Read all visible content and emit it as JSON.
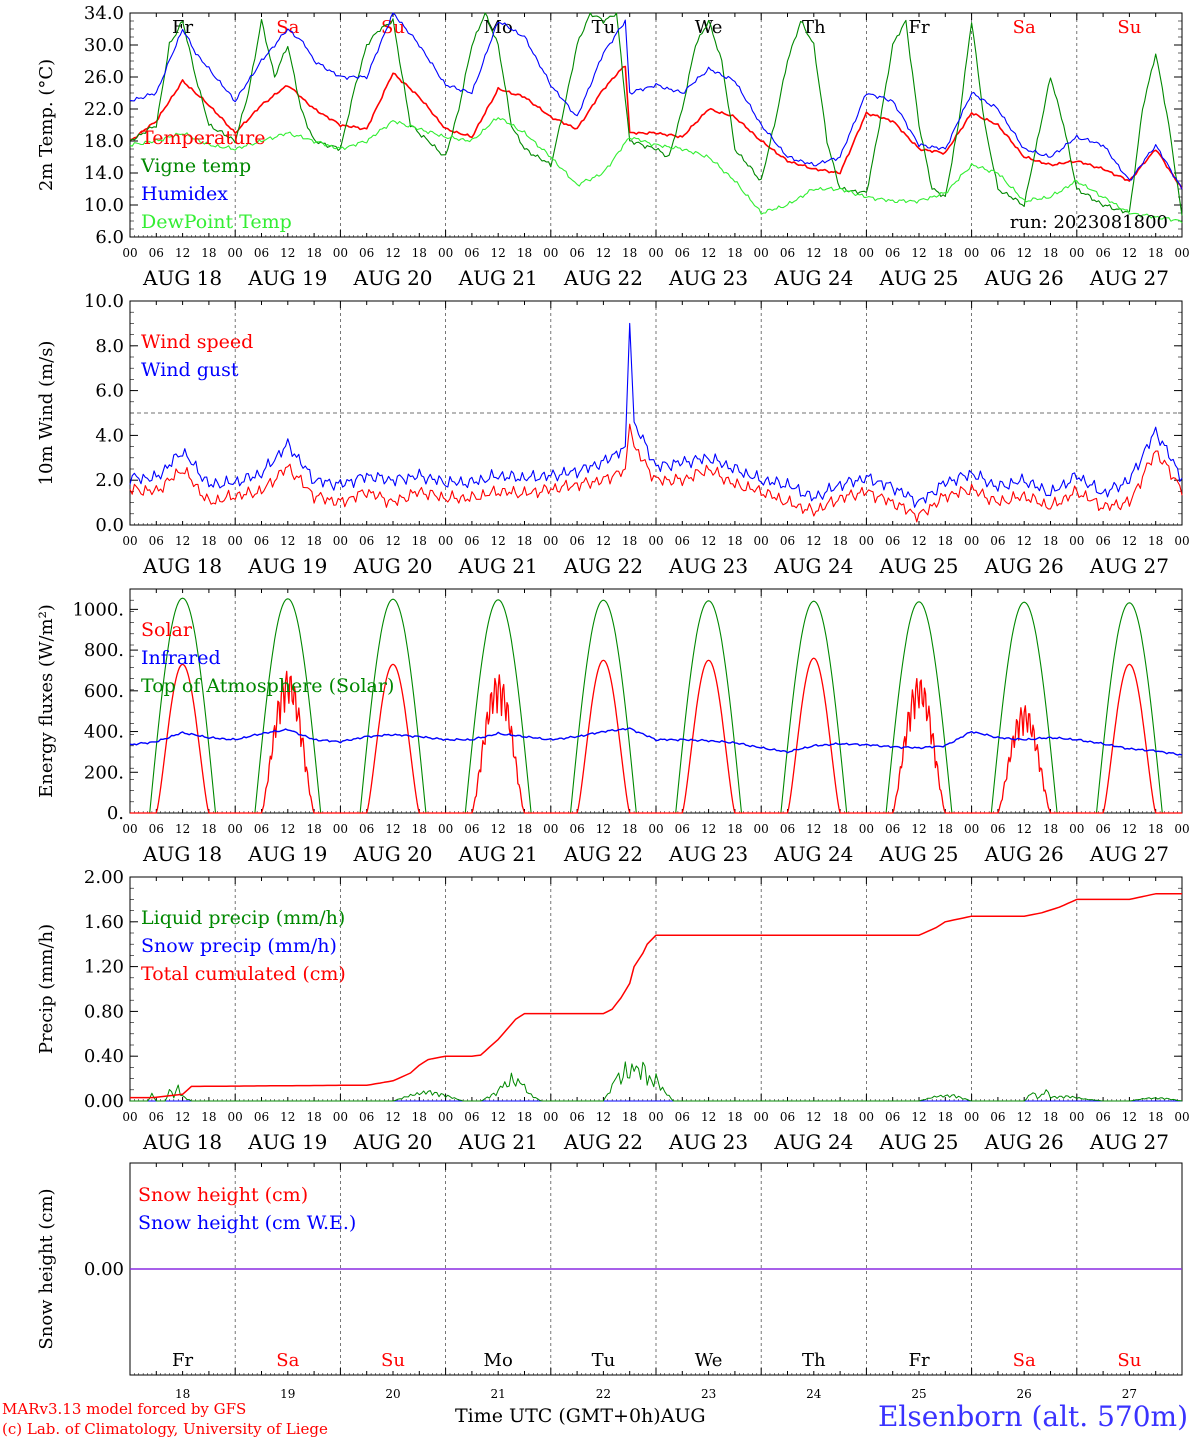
{
  "meta": {
    "run_label": "run: 2023081800",
    "credit_line1": "MARv3.13 model forced by GFS",
    "credit_line2": "(c) Lab. of Climatology, University of Liege",
    "time_axis_title": "Time UTC (GMT+0h)",
    "month": "AUG",
    "station": "Elsenborn (alt. 570m)"
  },
  "days": [
    {
      "date": "18",
      "dow": "Fr",
      "weekend": false
    },
    {
      "date": "19",
      "dow": "Sa",
      "weekend": true
    },
    {
      "date": "20",
      "dow": "Su",
      "weekend": true
    },
    {
      "date": "21",
      "dow": "Mo",
      "weekend": false
    },
    {
      "date": "22",
      "dow": "Tu",
      "weekend": false
    },
    {
      "date": "23",
      "dow": "We",
      "weekend": false
    },
    {
      "date": "24",
      "dow": "Th",
      "weekend": false
    },
    {
      "date": "25",
      "dow": "Fr",
      "weekend": false
    },
    {
      "date": "26",
      "dow": "Sa",
      "weekend": true
    },
    {
      "date": "27",
      "dow": "Su",
      "weekend": true
    }
  ],
  "hour_ticks": [
    "00",
    "06",
    "12",
    "18"
  ],
  "colors": {
    "red": "#ff0000",
    "blue": "#0000ff",
    "darkgreen": "#008800",
    "lightgreen": "#33ee33",
    "purple": "#8a2be2",
    "axis": "#000000"
  },
  "chart_data": [
    {
      "id": "temperature",
      "type": "line",
      "ylabel": "2m Temp. (°C)",
      "ylim": [
        6,
        34
      ],
      "yticks": [
        "6.0",
        "10.0",
        "14.0",
        "18.0",
        "22.0",
        "26.0",
        "30.0",
        "34.0"
      ],
      "x_unit": "hours since AUG 18 00 UTC",
      "series": [
        {
          "name": "Temperature",
          "color": "red",
          "x": [
            0,
            6,
            12,
            15,
            18,
            24,
            30,
            36,
            40,
            42,
            48,
            54,
            60,
            66,
            72,
            78,
            84,
            90,
            96,
            102,
            108,
            113,
            114,
            120,
            126,
            132,
            138,
            144,
            150,
            156,
            162,
            168,
            174,
            180,
            186,
            192,
            198,
            204,
            210,
            216,
            222,
            228,
            234,
            240
          ],
          "values": [
            18.0,
            20.5,
            25.5,
            24.0,
            22.5,
            19.0,
            22.5,
            25.0,
            23.0,
            22.0,
            20.0,
            19.5,
            26.5,
            23.5,
            19.5,
            18.5,
            24.5,
            23.5,
            21.0,
            19.5,
            24.5,
            27.5,
            19.0,
            19.0,
            18.5,
            22.0,
            21.0,
            18.0,
            15.5,
            14.5,
            14.0,
            21.5,
            20.5,
            17.0,
            16.5,
            21.5,
            20.0,
            16.0,
            15.0,
            15.5,
            14.5,
            13.0,
            17.0,
            12.0
          ]
        },
        {
          "name": "Vigne temp",
          "color": "darkgreen",
          "x": [
            0,
            6,
            9,
            12,
            15,
            18,
            24,
            27,
            30,
            33,
            36,
            39,
            42,
            48,
            51,
            54,
            57,
            60,
            64,
            66,
            72,
            75,
            78,
            81,
            84,
            87,
            90,
            96,
            99,
            102,
            105,
            108,
            111,
            114,
            120,
            123,
            126,
            129,
            132,
            135,
            138,
            144,
            147,
            150,
            153,
            156,
            159,
            162,
            168,
            171,
            174,
            177,
            180,
            183,
            186,
            189,
            192,
            195,
            198,
            204,
            207,
            210,
            213,
            216,
            219,
            222,
            228,
            231,
            234,
            237,
            240
          ],
          "values": [
            18.0,
            20.0,
            30.0,
            33.0,
            26.0,
            20.0,
            18.0,
            24.0,
            33.0,
            26.0,
            30.0,
            22.0,
            18.0,
            17.0,
            24.0,
            30.0,
            32.0,
            33.0,
            20.0,
            19.0,
            16.0,
            22.0,
            30.0,
            34.0,
            30.0,
            20.0,
            17.0,
            15.0,
            22.0,
            30.0,
            34.0,
            33.0,
            34.0,
            18.0,
            17.0,
            16.0,
            22.0,
            30.0,
            33.0,
            28.0,
            17.0,
            13.0,
            20.0,
            28.0,
            33.0,
            30.0,
            18.0,
            12.0,
            11.5,
            20.0,
            30.0,
            33.0,
            20.0,
            12.0,
            11.0,
            20.0,
            33.0,
            20.0,
            12.0,
            10.0,
            18.0,
            26.0,
            20.0,
            12.0,
            11.0,
            10.0,
            9.0,
            22.0,
            29.0,
            20.0,
            8.5
          ]
        },
        {
          "name": "Humidex",
          "color": "blue",
          "x": [
            0,
            6,
            12,
            15,
            18,
            24,
            30,
            36,
            40,
            42,
            48,
            54,
            60,
            66,
            72,
            78,
            84,
            90,
            96,
            102,
            108,
            113,
            114,
            120,
            126,
            132,
            138,
            144,
            150,
            156,
            162,
            168,
            174,
            180,
            186,
            192,
            198,
            204,
            210,
            216,
            222,
            228,
            234,
            240
          ],
          "values": [
            23.0,
            24.0,
            32.0,
            29.0,
            27.0,
            23.0,
            28.0,
            32.0,
            30.0,
            28.0,
            26.0,
            26.0,
            34.0,
            30.0,
            25.0,
            24.0,
            33.0,
            31.0,
            25.0,
            21.0,
            29.0,
            33.0,
            24.0,
            25.0,
            24.0,
            27.0,
            25.5,
            20.0,
            16.0,
            15.0,
            16.0,
            24.0,
            23.0,
            17.5,
            17.0,
            24.0,
            22.0,
            17.0,
            16.0,
            18.5,
            17.5,
            13.0,
            17.5,
            12.0
          ]
        },
        {
          "name": "DewPoint Temp",
          "color": "lightgreen",
          "x": [
            0,
            6,
            12,
            18,
            24,
            30,
            36,
            42,
            48,
            54,
            60,
            66,
            72,
            78,
            84,
            90,
            96,
            102,
            108,
            114,
            120,
            126,
            132,
            138,
            144,
            150,
            156,
            162,
            168,
            174,
            180,
            186,
            192,
            198,
            204,
            210,
            216,
            222,
            228,
            234,
            240
          ],
          "values": [
            17.5,
            18.0,
            19.0,
            17.5,
            17.0,
            18.0,
            19.0,
            18.0,
            17.0,
            18.0,
            20.5,
            19.5,
            18.5,
            18.0,
            21.0,
            19.0,
            16.0,
            12.5,
            14.0,
            18.5,
            17.5,
            17.0,
            16.0,
            13.0,
            9.0,
            10.0,
            12.0,
            12.0,
            11.0,
            10.5,
            10.5,
            11.5,
            15.0,
            14.0,
            10.5,
            11.0,
            13.0,
            11.0,
            9.0,
            8.5,
            8.0
          ]
        }
      ]
    },
    {
      "id": "wind",
      "type": "line",
      "ylabel": "10m Wind (m/s)",
      "ylim": [
        0,
        10
      ],
      "yticks": [
        "0.0",
        "2.0",
        "4.0",
        "6.0",
        "8.0",
        "10.0"
      ],
      "dashed_reference": 5.0,
      "series": [
        {
          "name": "Wind speed",
          "color": "red",
          "x": [
            0,
            6,
            12,
            18,
            24,
            30,
            36,
            42,
            48,
            54,
            60,
            66,
            72,
            78,
            84,
            90,
            96,
            102,
            108,
            113,
            114,
            115,
            120,
            126,
            132,
            138,
            144,
            150,
            156,
            162,
            168,
            174,
            180,
            186,
            192,
            198,
            204,
            210,
            216,
            222,
            228,
            234,
            240
          ],
          "values": [
            1.6,
            1.5,
            2.5,
            1.0,
            1.3,
            1.5,
            2.6,
            1.3,
            1.0,
            1.5,
            1.0,
            1.5,
            1.2,
            1.2,
            1.5,
            1.4,
            1.6,
            1.8,
            2.0,
            2.5,
            4.5,
            3.5,
            2.0,
            2.0,
            2.5,
            1.8,
            1.5,
            1.0,
            0.6,
            1.2,
            1.5,
            1.0,
            0.4,
            1.3,
            1.6,
            1.0,
            1.3,
            0.8,
            1.5,
            0.8,
            1.0,
            3.3,
            1.6
          ]
        },
        {
          "name": "Wind gust",
          "color": "blue",
          "x": [
            0,
            6,
            12,
            18,
            24,
            30,
            36,
            42,
            48,
            54,
            60,
            66,
            72,
            78,
            84,
            90,
            96,
            102,
            108,
            113,
            114,
            115,
            120,
            126,
            132,
            138,
            144,
            150,
            156,
            162,
            168,
            174,
            180,
            186,
            192,
            198,
            204,
            210,
            216,
            222,
            228,
            234,
            240
          ],
          "values": [
            2.1,
            2.1,
            3.3,
            1.8,
            1.9,
            2.3,
            3.6,
            2.0,
            1.8,
            2.2,
            2.0,
            2.2,
            1.9,
            1.9,
            2.2,
            2.1,
            2.2,
            2.4,
            2.8,
            3.5,
            9.0,
            4.6,
            2.6,
            2.8,
            3.0,
            2.5,
            2.0,
            1.8,
            1.2,
            1.8,
            2.1,
            1.7,
            1.0,
            1.9,
            2.3,
            1.7,
            2.0,
            1.4,
            2.2,
            1.4,
            2.0,
            4.2,
            2.1
          ]
        }
      ]
    },
    {
      "id": "energy",
      "type": "line",
      "ylabel": "Energy fluxes (W/m²)",
      "ylim": [
        0,
        1100
      ],
      "yticks": [
        "0.",
        "200.",
        "400.",
        "600.",
        "800.",
        "1000."
      ],
      "ytick_values": [
        0,
        200,
        400,
        600,
        800,
        1000
      ],
      "sunrise_hour": 4.5,
      "sunset_hour": 19.5,
      "series": [
        {
          "name": "Solar",
          "color": "red",
          "daily_peak": [
            730,
            700,
            730,
            680,
            750,
            750,
            760,
            670,
            530,
            730
          ]
        },
        {
          "name": "Infrared",
          "color": "blue",
          "x": [
            0,
            6,
            12,
            18,
            24,
            30,
            36,
            42,
            48,
            54,
            60,
            66,
            72,
            78,
            84,
            90,
            96,
            102,
            108,
            114,
            120,
            126,
            132,
            138,
            144,
            150,
            156,
            162,
            168,
            174,
            180,
            186,
            192,
            198,
            204,
            210,
            216,
            222,
            228,
            234,
            240
          ],
          "values": [
            335,
            350,
            395,
            370,
            360,
            390,
            410,
            360,
            350,
            375,
            385,
            375,
            360,
            360,
            390,
            375,
            360,
            375,
            400,
            415,
            360,
            360,
            355,
            345,
            320,
            300,
            330,
            340,
            335,
            325,
            320,
            330,
            400,
            370,
            360,
            370,
            360,
            340,
            315,
            305,
            285
          ]
        },
        {
          "name": "Top of Atmosphere (Solar)",
          "color": "darkgreen",
          "daily_peak": [
            1055,
            1052,
            1050,
            1047,
            1045,
            1042,
            1040,
            1037,
            1035,
            1032
          ]
        }
      ]
    },
    {
      "id": "precip",
      "type": "line",
      "ylabel": "Precip (mm/h)",
      "ylim": [
        0,
        2
      ],
      "yticks": [
        "0.00",
        "0.40",
        "0.80",
        "1.20",
        "1.60",
        "2.00"
      ],
      "series": [
        {
          "name": "Liquid precip (mm/h)",
          "color": "darkgreen",
          "x": [
            0,
            4,
            5,
            6,
            8,
            9,
            10,
            11,
            12,
            14,
            60,
            64,
            68,
            72,
            76,
            80,
            84,
            85,
            86,
            87,
            88,
            89,
            90,
            91,
            92,
            93,
            94,
            96,
            108,
            110,
            111,
            112,
            113,
            114,
            115,
            116,
            117,
            118,
            119,
            120,
            121,
            122,
            124,
            180,
            184,
            188,
            192,
            204,
            206,
            207,
            208,
            209,
            210,
            214,
            218,
            222,
            228,
            232,
            236,
            240
          ],
          "values": [
            0,
            0,
            0.07,
            0.0,
            0,
            0.12,
            0.05,
            0.15,
            0.05,
            0,
            0,
            0.06,
            0.1,
            0.06,
            0,
            0,
            0.1,
            0.2,
            0.15,
            0.25,
            0.18,
            0.22,
            0.15,
            0.08,
            0.05,
            0.02,
            0,
            0,
            0,
            0.15,
            0.3,
            0.2,
            0.35,
            0.25,
            0.42,
            0.3,
            0.38,
            0.28,
            0.2,
            0.25,
            0.15,
            0.1,
            0,
            0,
            0.05,
            0.06,
            0,
            0,
            0.1,
            0.03,
            0.06,
            0.12,
            0.04,
            0.05,
            0.02,
            0,
            0,
            0.03,
            0.03,
            0
          ]
        },
        {
          "name": "Snow precip (mm/h)",
          "color": "blue",
          "x": [
            0,
            240
          ],
          "values": [
            0,
            0
          ]
        },
        {
          "name": "Total cumulated (cm)",
          "color": "red",
          "x": [
            0,
            5,
            12,
            14,
            48,
            54,
            60,
            64,
            66,
            68,
            72,
            78,
            80,
            84,
            88,
            90,
            96,
            108,
            110,
            112,
            114,
            115,
            117,
            118,
            120,
            180,
            184,
            186,
            192,
            204,
            208,
            212,
            216,
            228,
            234,
            240
          ],
          "values": [
            0.03,
            0.03,
            0.06,
            0.13,
            0.14,
            0.14,
            0.18,
            0.25,
            0.32,
            0.37,
            0.4,
            0.4,
            0.41,
            0.55,
            0.73,
            0.78,
            0.78,
            0.78,
            0.82,
            0.92,
            1.05,
            1.2,
            1.32,
            1.4,
            1.48,
            1.48,
            1.55,
            1.6,
            1.65,
            1.65,
            1.68,
            1.73,
            1.8,
            1.8,
            1.85,
            1.85
          ]
        }
      ]
    },
    {
      "id": "snow",
      "type": "line",
      "ylabel": "Snow height (cm)",
      "ytick": "0.00",
      "series": [
        {
          "name": "Snow height (cm)",
          "color": "red",
          "x": [
            0,
            240
          ],
          "values": [
            0,
            0
          ]
        },
        {
          "name": "Snow height (cm W.E.)",
          "color": "blue",
          "x": [
            0,
            240
          ],
          "values": [
            0,
            0
          ]
        }
      ]
    }
  ]
}
